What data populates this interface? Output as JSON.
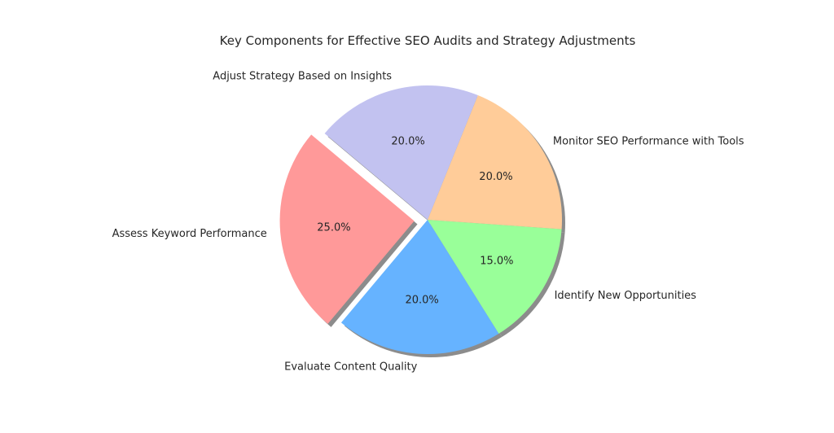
{
  "chart_data": {
    "type": "pie",
    "title": "Key Components for Effective SEO Audits and Strategy Adjustments",
    "start_angle_deg": 140,
    "direction": "counterclockwise",
    "shadow": true,
    "slices": [
      {
        "label": "Assess Keyword Performance",
        "value": 25.0,
        "pct_label": "25.0%",
        "color": "#ff9999",
        "explode": 0.1
      },
      {
        "label": "Evaluate Content Quality",
        "value": 20.0,
        "pct_label": "20.0%",
        "color": "#66b3ff",
        "explode": 0
      },
      {
        "label": "Identify New Opportunities",
        "value": 15.0,
        "pct_label": "15.0%",
        "color": "#99ff99",
        "explode": 0
      },
      {
        "label": "Monitor SEO Performance with Tools",
        "value": 20.0,
        "pct_label": "20.0%",
        "color": "#ffcc99",
        "explode": 0
      },
      {
        "label": "Adjust Strategy Based on Insights",
        "value": 20.0,
        "pct_label": "20.0%",
        "color": "#c2c2f0",
        "explode": 0
      }
    ]
  }
}
